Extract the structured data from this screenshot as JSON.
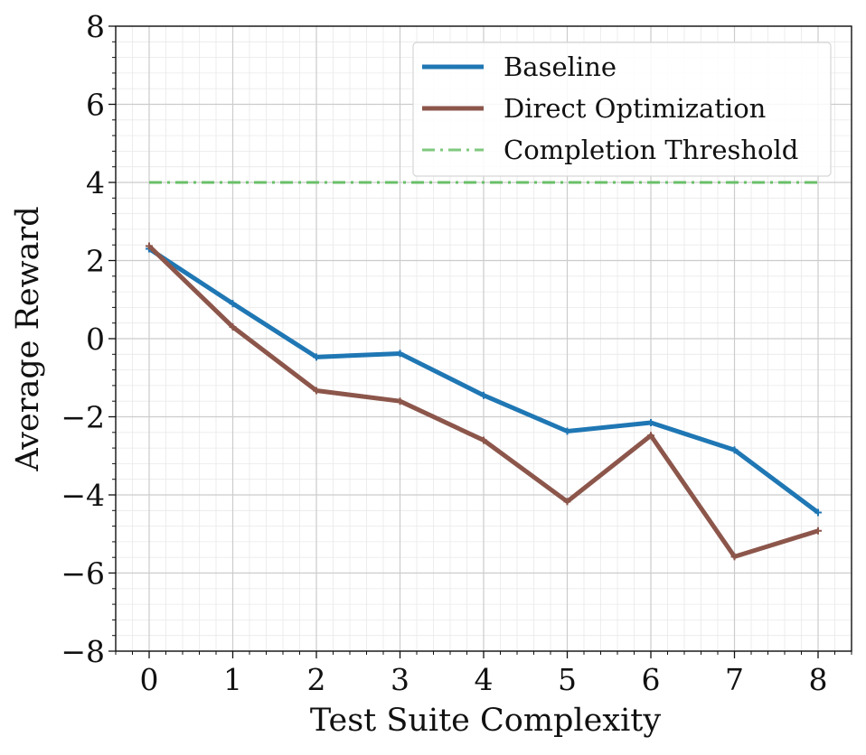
{
  "chart_data": {
    "type": "line",
    "title": "",
    "xlabel": "Test Suite Complexity",
    "ylabel": "Average Reward",
    "x": [
      0,
      1,
      2,
      3,
      4,
      5,
      6,
      7,
      8
    ],
    "xlim": [
      -0.4,
      8.4
    ],
    "ylim": [
      -8,
      8
    ],
    "xticks": [
      0,
      1,
      2,
      3,
      4,
      5,
      6,
      7,
      8
    ],
    "yticks": [
      -8,
      -6,
      -4,
      -2,
      0,
      2,
      4,
      6,
      8
    ],
    "grid": true,
    "minor_grid": true,
    "legend_position": "top-right",
    "series": [
      {
        "name": "Baseline",
        "color": "#1f77b4",
        "line_style": "solid",
        "values": [
          2.3,
          0.9,
          -0.47,
          -0.38,
          -1.45,
          -2.37,
          -2.15,
          -2.85,
          -4.45
        ]
      },
      {
        "name": "Direct Optimization",
        "color": "#8c564b",
        "line_style": "solid",
        "values": [
          2.37,
          0.3,
          -1.33,
          -1.6,
          -2.6,
          -4.17,
          -2.48,
          -5.58,
          -4.92
        ]
      },
      {
        "name": "Completion Threshold",
        "color": "#6abf69",
        "line_style": "dash-dot",
        "values": [
          4,
          4,
          4,
          4,
          4,
          4,
          4,
          4,
          4
        ]
      }
    ]
  }
}
